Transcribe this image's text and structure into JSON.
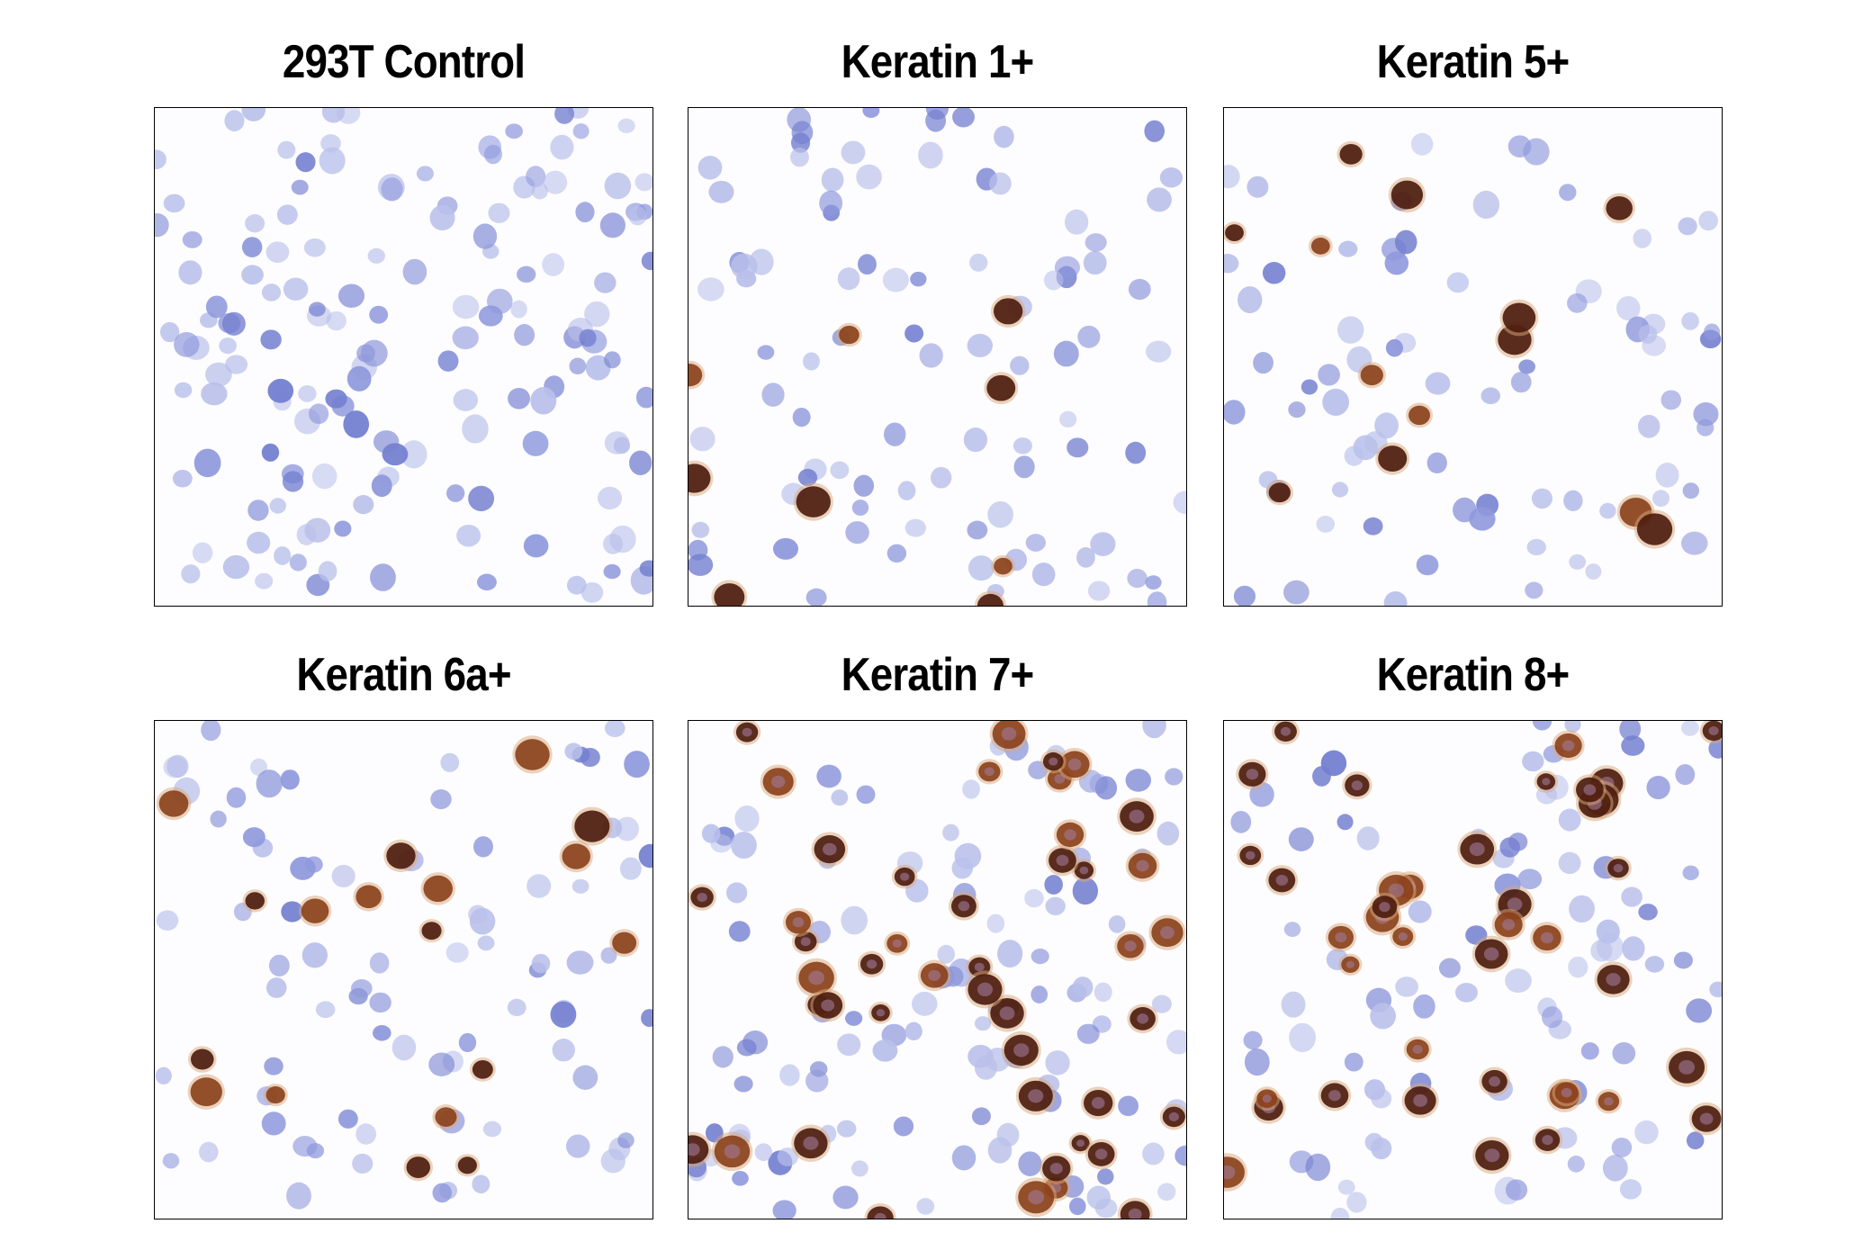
{
  "panels": [
    {
      "title": "293T Control"
    },
    {
      "title": "Keratin 1+"
    },
    {
      "title": "Keratin 5+"
    },
    {
      "title": "Keratin 6a+"
    },
    {
      "title": "Keratin 7+"
    },
    {
      "title": "Keratin 8+"
    }
  ]
}
